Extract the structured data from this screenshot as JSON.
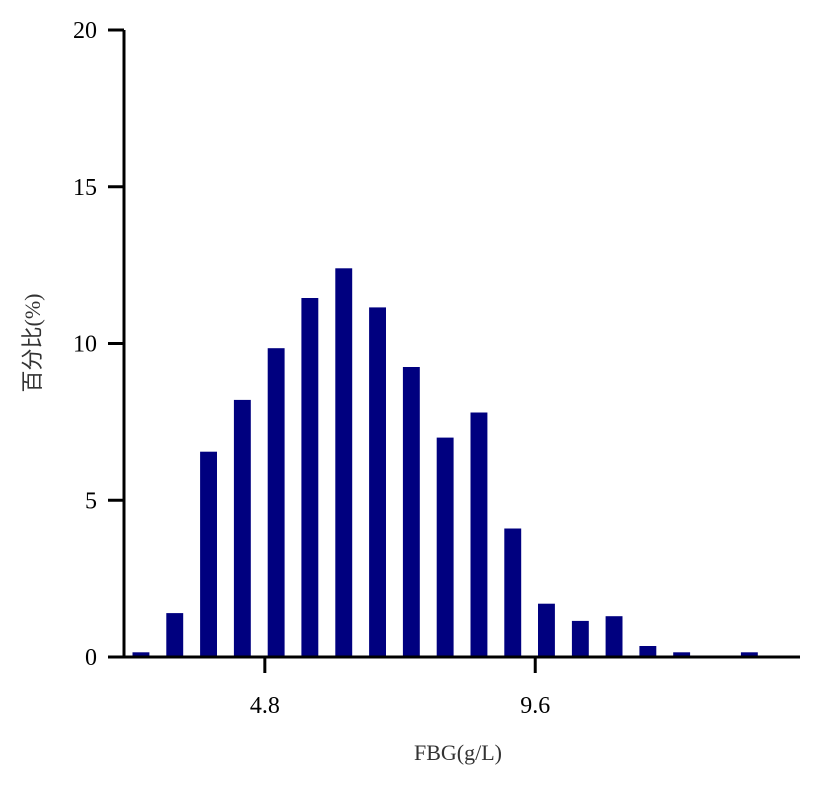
{
  "chart_data": {
    "type": "bar",
    "xlabel": "FBG(g/L)",
    "ylabel": "百分比(%)",
    "xlim": [
      2.3,
      14.3
    ],
    "ylim": [
      0,
      20
    ],
    "x_ticks": [
      {
        "value": 4.8,
        "label": "4.8"
      },
      {
        "value": 9.6,
        "label": "9.6"
      }
    ],
    "y_ticks": [
      {
        "value": 0,
        "label": "0"
      },
      {
        "value": 5,
        "label": "5"
      },
      {
        "value": 10,
        "label": "10"
      },
      {
        "value": 15,
        "label": "15"
      },
      {
        "value": 20,
        "label": "20"
      }
    ],
    "bar_width": 0.3,
    "x": [
      2.6,
      3.2,
      3.8,
      4.4,
      5.0,
      5.6,
      6.2,
      6.8,
      7.4,
      8.0,
      8.6,
      9.2,
      9.8,
      10.4,
      11.0,
      11.6,
      12.2,
      13.4
    ],
    "values": [
      0.15,
      1.4,
      6.55,
      8.2,
      9.85,
      11.45,
      12.4,
      11.15,
      9.25,
      7.0,
      7.8,
      4.1,
      1.7,
      1.15,
      1.3,
      0.35,
      0.15,
      0.15
    ],
    "bar_color": "#00007f",
    "grid": false,
    "legend": "none"
  }
}
